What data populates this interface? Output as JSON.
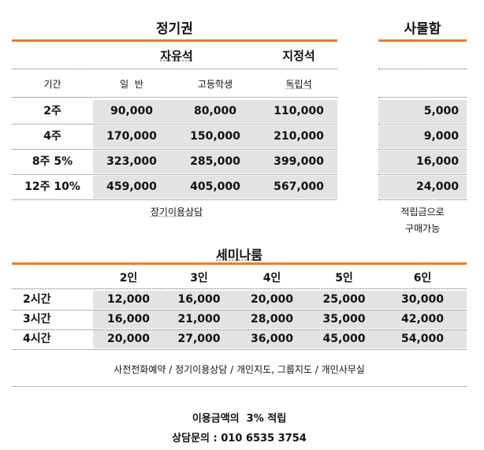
{
  "pass": {
    "title": "정기권",
    "zone_free": "자유석",
    "zone_fixed": "지정석",
    "col_period": "기간",
    "col_general": "일  반",
    "col_student": "고등학생",
    "col_private": "독립석",
    "rows": [
      {
        "period": "2주",
        "general": "90,000",
        "student": "80,000",
        "private": "110,000"
      },
      {
        "period": "4주",
        "general": "170,000",
        "student": "150,000",
        "private": "210,000"
      },
      {
        "period": "8주 5%",
        "general": "323,000",
        "student": "285,000",
        "private": "399,000"
      },
      {
        "period": "12주 10%",
        "general": "459,000",
        "student": "405,000",
        "private": "567,000"
      }
    ],
    "note": "장기이용상담"
  },
  "locker": {
    "title": "사물함",
    "prices": [
      "5,000",
      "9,000",
      "16,000",
      "24,000"
    ],
    "note_line1": "적립금으로",
    "note_line2": "구매가능"
  },
  "seminar": {
    "title": "세미나룸",
    "headers": [
      "2인",
      "3인",
      "4인",
      "5인",
      "6인"
    ],
    "rows": [
      {
        "time": "2시간",
        "prices": [
          "12,000",
          "16,000",
          "20,000",
          "25,000",
          "30,000"
        ]
      },
      {
        "time": "3시간",
        "prices": [
          "16,000",
          "21,000",
          "28,000",
          "35,000",
          "42,000"
        ]
      },
      {
        "time": "4시간",
        "prices": [
          "20,000",
          "27,000",
          "36,000",
          "45,000",
          "54,000"
        ]
      }
    ],
    "note": "사전전화예약 / 정기이용상담 / 개인지도, 그룹지도 / 개인사무실"
  },
  "footer": {
    "line1": "이용금액의  3% 적립",
    "line2": "상담문의 : 010 6535 3754"
  }
}
